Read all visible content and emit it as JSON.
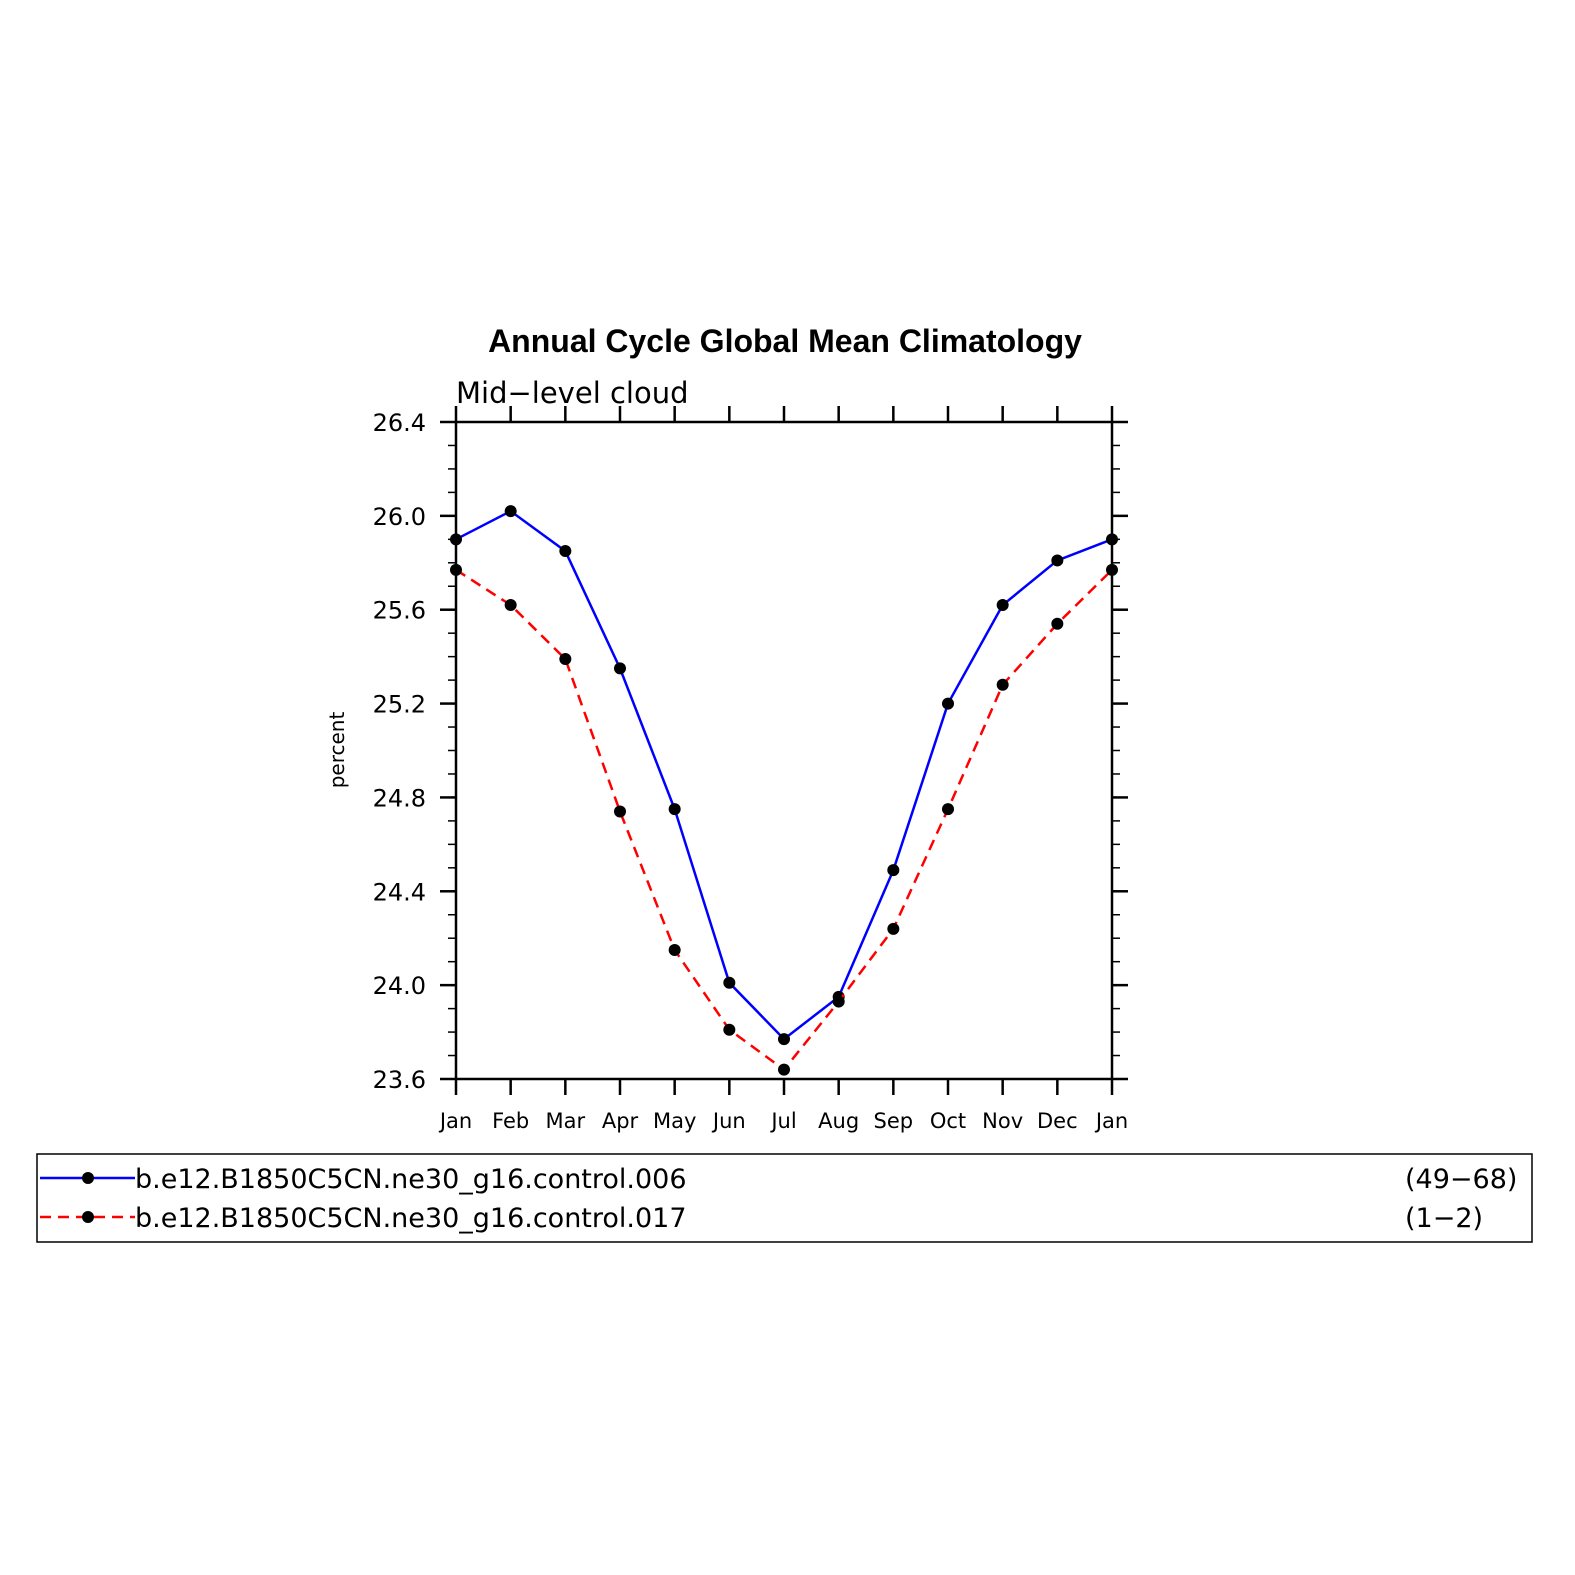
{
  "chart_data": {
    "type": "line",
    "title": "Annual Cycle Global Mean Climatology",
    "subtitle": "Mid−level cloud",
    "ylabel": "percent",
    "xlabel": "",
    "categories": [
      "Jan",
      "Feb",
      "Mar",
      "Apr",
      "May",
      "Jun",
      "Jul",
      "Aug",
      "Sep",
      "Oct",
      "Nov",
      "Dec",
      "Jan"
    ],
    "ylim": [
      23.6,
      26.4
    ],
    "yticks": [
      "23.6",
      "24.0",
      "24.4",
      "24.8",
      "25.2",
      "25.6",
      "26.0",
      "26.4"
    ],
    "series": [
      {
        "name": "b.e12.B1850C5CN.ne30_g16.control.006",
        "years": "(49−68)",
        "color": "#0000ff",
        "dash": "solid",
        "values": [
          25.9,
          26.02,
          25.85,
          25.35,
          24.75,
          24.01,
          23.77,
          23.95,
          24.49,
          25.2,
          25.62,
          25.81,
          25.9
        ]
      },
      {
        "name": "b.e12.B1850C5CN.ne30_g16.control.017",
        "years": "(1−2)",
        "color": "#ff0000",
        "dash": "dashed",
        "values": [
          25.77,
          25.62,
          25.39,
          24.74,
          24.15,
          23.81,
          23.64,
          23.93,
          24.24,
          24.75,
          25.28,
          25.54,
          25.77
        ]
      }
    ],
    "grid": false,
    "legend_position": "bottom"
  }
}
